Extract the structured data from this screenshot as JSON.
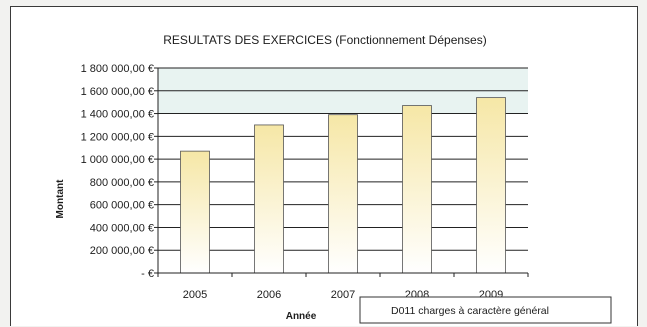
{
  "chart_data": {
    "type": "bar",
    "title": "RESULTATS DES EXERCICES (Fonctionnement Dépenses)",
    "xlabel": "Année",
    "ylabel": "Montant",
    "categories": [
      "2005",
      "2006",
      "2007",
      "2008",
      "2009"
    ],
    "series": [
      {
        "name": "D011 charges à caractère général",
        "values": [
          1070000,
          1300000,
          1390000,
          1470000,
          1540000
        ]
      }
    ],
    "ylim": [
      0,
      1800000
    ],
    "yticks": [
      0,
      200000,
      400000,
      600000,
      800000,
      1000000,
      1200000,
      1400000,
      1600000,
      1800000
    ],
    "ytick_labels": [
      "- €",
      "200 000,00 €",
      "400 000,00 €",
      "600 000,00 €",
      "800 000,00 €",
      "1 000 000,00 €",
      "1 200 000,00 €",
      "1 400 000,00 €",
      "1 600 000,00 €",
      "1 800 000,00 €"
    ],
    "grid": true,
    "legend_position": "bottom-right",
    "colors": {
      "bar_top": "#f6e7a6",
      "bar_bottom": "#ffffff",
      "plot_band": "#e8f3f1",
      "grid": "#222222"
    }
  }
}
